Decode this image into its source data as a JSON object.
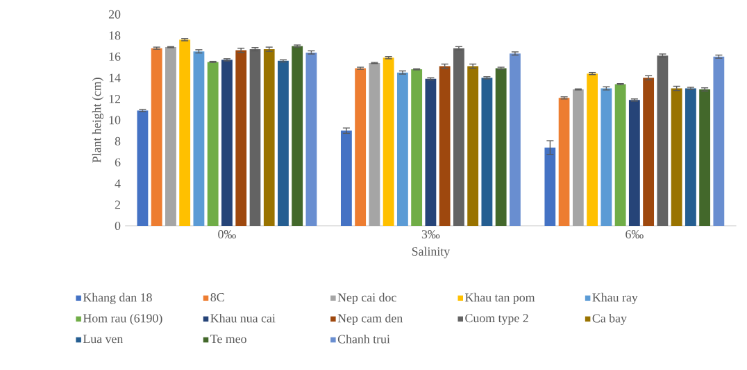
{
  "chart_data": {
    "type": "bar",
    "xlabel": "Salinity",
    "ylabel": "Plant height (cm)",
    "categories": [
      "0‰",
      "3‰",
      "6‰"
    ],
    "ylim": [
      0,
      20
    ],
    "yticks": [
      0,
      2,
      4,
      6,
      8,
      10,
      12,
      14,
      16,
      18,
      20
    ],
    "grid": false,
    "legend": "bottom",
    "series": [
      {
        "name": "Khang dan 18",
        "color": "#4472c4",
        "values": [
          10.9,
          9.0,
          7.4
        ],
        "errors": [
          0.1,
          0.25,
          0.65
        ]
      },
      {
        "name": "8C",
        "color": "#ed7d31",
        "values": [
          16.8,
          14.9,
          12.1
        ],
        "errors": [
          0.1,
          0.1,
          0.1
        ]
      },
      {
        "name": "Nep cai doc",
        "color": "#a5a5a5",
        "values": [
          16.9,
          15.4,
          12.9
        ],
        "errors": [
          0.05,
          0.05,
          0.05
        ]
      },
      {
        "name": "Khau tan pom",
        "color": "#ffc000",
        "values": [
          17.6,
          15.9,
          14.4
        ],
        "errors": [
          0.1,
          0.1,
          0.1
        ]
      },
      {
        "name": "Khau ray",
        "color": "#5b9bd5",
        "values": [
          16.5,
          14.5,
          13.0
        ],
        "errors": [
          0.15,
          0.15,
          0.15
        ]
      },
      {
        "name": "Hom rau (6190)",
        "color": "#70ad47",
        "values": [
          15.5,
          14.8,
          13.4
        ],
        "errors": [
          0.05,
          0.05,
          0.05
        ]
      },
      {
        "name": "Khau nua cai",
        "color": "#264478",
        "values": [
          15.7,
          13.9,
          11.9
        ],
        "errors": [
          0.1,
          0.1,
          0.1
        ]
      },
      {
        "name": "Nep cam den",
        "color": "#9e480e",
        "values": [
          16.6,
          15.1,
          14.0
        ],
        "errors": [
          0.2,
          0.2,
          0.2
        ]
      },
      {
        "name": "Cuom type 2",
        "color": "#636363",
        "values": [
          16.7,
          16.8,
          16.1
        ],
        "errors": [
          0.15,
          0.15,
          0.15
        ]
      },
      {
        "name": "Ca bay",
        "color": "#997300",
        "values": [
          16.7,
          15.1,
          13.0
        ],
        "errors": [
          0.2,
          0.2,
          0.2
        ]
      },
      {
        "name": "Lua ven",
        "color": "#255e91",
        "values": [
          15.6,
          14.0,
          13.0
        ],
        "errors": [
          0.1,
          0.1,
          0.1
        ]
      },
      {
        "name": "Te meo",
        "color": "#43682b",
        "values": [
          17.0,
          14.9,
          12.9
        ],
        "errors": [
          0.1,
          0.1,
          0.15
        ]
      },
      {
        "name": "Chanh trui",
        "color": "#698ed0",
        "values": [
          16.4,
          16.3,
          16.0
        ],
        "errors": [
          0.15,
          0.15,
          0.15
        ]
      }
    ]
  }
}
